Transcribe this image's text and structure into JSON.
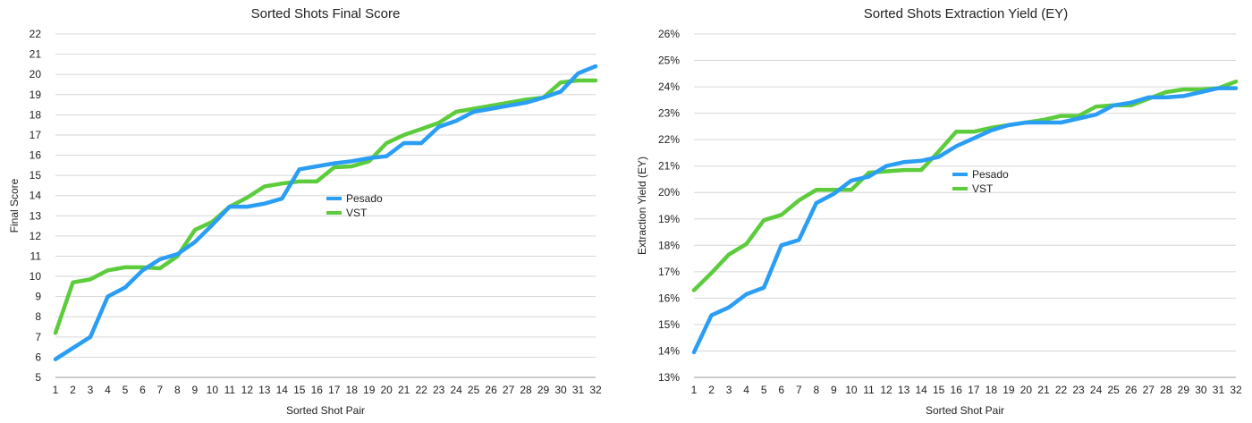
{
  "chart_data": [
    {
      "type": "line",
      "title": "Sorted Shots Final Score",
      "xlabel": "Sorted Shot Pair",
      "ylabel": "Final Score",
      "categories": [
        1,
        2,
        3,
        4,
        5,
        6,
        7,
        8,
        9,
        10,
        11,
        12,
        13,
        14,
        15,
        16,
        17,
        18,
        19,
        20,
        21,
        22,
        23,
        24,
        25,
        26,
        27,
        28,
        29,
        30,
        31,
        32
      ],
      "yticks": [
        5,
        6,
        7,
        8,
        9,
        10,
        11,
        12,
        13,
        14,
        15,
        16,
        17,
        18,
        19,
        20,
        21,
        22
      ],
      "ytick_format": "",
      "ylim": [
        5,
        22
      ],
      "grid": true,
      "legend_placement": "center",
      "series": [
        {
          "name": "Pesado",
          "color": "#2a9df4",
          "values": [
            5.9,
            6.45,
            7.0,
            9.0,
            9.45,
            10.3,
            10.85,
            11.1,
            11.7,
            12.55,
            13.45,
            13.45,
            13.6,
            13.85,
            15.3,
            15.45,
            15.6,
            15.7,
            15.85,
            15.95,
            16.6,
            16.6,
            17.4,
            17.7,
            18.15,
            18.3,
            18.45,
            18.6,
            18.85,
            19.15,
            20.05,
            20.4
          ]
        },
        {
          "name": "VST",
          "color": "#5ccc3c",
          "values": [
            7.2,
            9.7,
            9.85,
            10.3,
            10.45,
            10.45,
            10.4,
            11.0,
            12.3,
            12.7,
            13.45,
            13.9,
            14.45,
            14.6,
            14.7,
            14.7,
            15.4,
            15.45,
            15.7,
            16.6,
            17.0,
            17.3,
            17.6,
            18.15,
            18.3,
            18.45,
            18.6,
            18.75,
            18.85,
            19.6,
            19.7,
            19.7
          ]
        }
      ]
    },
    {
      "type": "line",
      "title": "Sorted Shots Extraction Yield (EY)",
      "xlabel": "Sorted Shot Pair",
      "ylabel": "Extraction Yield (EY)",
      "categories": [
        1,
        2,
        3,
        4,
        5,
        6,
        7,
        8,
        9,
        10,
        11,
        12,
        13,
        14,
        15,
        16,
        17,
        18,
        19,
        20,
        21,
        22,
        23,
        24,
        25,
        26,
        27,
        28,
        29,
        30,
        31,
        32
      ],
      "yticks": [
        13,
        14,
        15,
        16,
        17,
        18,
        19,
        20,
        21,
        22,
        23,
        24,
        25,
        26
      ],
      "ytick_format": "%",
      "ylim": [
        13,
        26
      ],
      "grid": true,
      "legend_placement": "center",
      "series": [
        {
          "name": "Pesado",
          "color": "#2a9df4",
          "values": [
            13.95,
            15.35,
            15.65,
            16.15,
            16.4,
            18.0,
            18.2,
            19.6,
            19.95,
            20.45,
            20.6,
            21.0,
            21.15,
            21.2,
            21.35,
            21.75,
            22.05,
            22.35,
            22.55,
            22.65,
            22.65,
            22.65,
            22.8,
            22.95,
            23.3,
            23.4,
            23.6,
            23.6,
            23.65,
            23.8,
            23.95,
            23.95
          ]
        },
        {
          "name": "VST",
          "color": "#5ccc3c",
          "values": [
            16.3,
            16.95,
            17.65,
            18.05,
            18.95,
            19.15,
            19.7,
            20.1,
            20.1,
            20.1,
            20.75,
            20.8,
            20.85,
            20.85,
            21.55,
            22.3,
            22.3,
            22.45,
            22.55,
            22.65,
            22.75,
            22.9,
            22.9,
            23.25,
            23.3,
            23.3,
            23.55,
            23.8,
            23.9,
            23.9,
            23.95,
            24.2
          ]
        }
      ]
    }
  ]
}
